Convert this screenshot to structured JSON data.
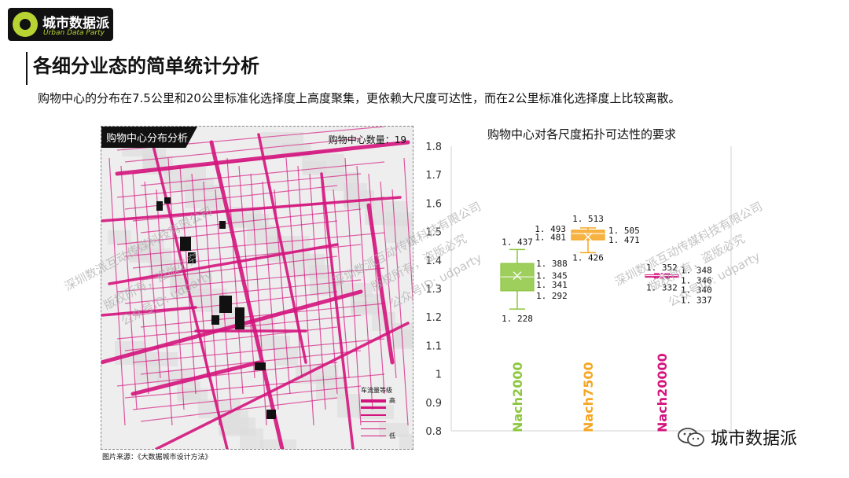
{
  "logo": {
    "cn": "城市数据派",
    "en": "Urban Data Party"
  },
  "page": {
    "title": "各细分业态的简单统计分析",
    "subtitle": "购物中心的分布在7.5公里和20公里标准化选择度上高度聚集，更依赖大尺度可达性，而在2公里标准化选择度上比较离散。"
  },
  "map": {
    "tag": "购物中心分布分析",
    "count": "购物中心数量：19",
    "legend_title": "车流量等级",
    "legend_high": "高",
    "legend_low": "低",
    "source": "图片来源：《大数据城市设计方法》"
  },
  "watermarks": [
    "深圳数派互动传媒科技有限公司",
    "版权所有，盗版必究",
    "公众号ID: udparty"
  ],
  "brand": "城市数据派",
  "colors": {
    "nach2000": "#8dc63f",
    "nach7500": "#f5a623",
    "nach20000": "#d4147e",
    "road": "#d4147e"
  },
  "chart_data": {
    "type": "box",
    "title": "购物中心对各尺度拓扑可达性的要求",
    "ylim": [
      0.8,
      1.8
    ],
    "yticks": [
      "0.8",
      "0.9",
      "1",
      "1.1",
      "1.2",
      "1.3",
      "1.4",
      "1.5",
      "1.6",
      "1.7",
      "1.8"
    ],
    "grid": false,
    "series": [
      {
        "name": "Nach2000",
        "min": 1.228,
        "q1": 1.292,
        "median": 1.341,
        "mean": 1.345,
        "q3": 1.388,
        "max": 1.437,
        "labels": {
          "max": "1. 437",
          "q3": "1. 388",
          "mean": "1. 345",
          "median": "1. 341",
          "q1": "1. 292",
          "min": "1. 228"
        }
      },
      {
        "name": "Nach7500",
        "min": 1.426,
        "q1": 1.471,
        "median": 1.493,
        "mean": 1.481,
        "q3": 1.505,
        "max": 1.513,
        "labels": {
          "max": "1. 513",
          "q3": "1. 505",
          "median": "1. 493",
          "mean": "1. 481",
          "q1": "1. 471",
          "min": "1. 426"
        }
      },
      {
        "name": "Nach20000",
        "min": 1.337,
        "q1": 1.34,
        "median": 1.346,
        "mean": 1.346,
        "q3": 1.348,
        "max": 1.352,
        "labels": {
          "max": "1. 352",
          "q3": "1. 348",
          "median": "1. 346",
          "q1": "1. 340",
          "min": "1. 337",
          "extra": "1. 332"
        }
      }
    ]
  }
}
